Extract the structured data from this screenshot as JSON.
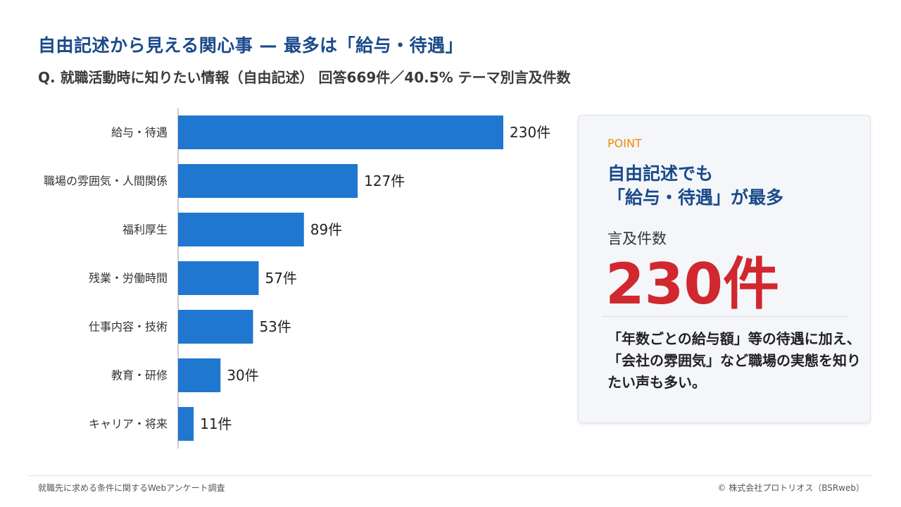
{
  "title": "自由記述から見える関心事 — 最多は「給与・待遇」",
  "subtitle": "Q. 就職活動時に知りたい情報（自由記述） 回答669件／40.5% テーマ別言及件数",
  "colors": {
    "bar": "#1f77d0",
    "accent_blue": "#1a4a8a",
    "accent_orange": "#f08a00",
    "accent_red": "#d0282e"
  },
  "chart_data": {
    "type": "bar",
    "orientation": "horizontal",
    "categories": [
      "給与・待遇",
      "職場の雰囲気・人間関係",
      "福利厚生",
      "残業・労働時間",
      "仕事内容・技術",
      "教育・研修",
      "キャリア・将来"
    ],
    "values": [
      230,
      127,
      89,
      57,
      53,
      30,
      11
    ],
    "value_labels": [
      "230件",
      "127件",
      "89件",
      "57件",
      "53件",
      "30件",
      "11件"
    ],
    "xlim": [
      0,
      230
    ],
    "grid": false,
    "legend": "none"
  },
  "panel": {
    "label": "POINT",
    "headline_line1": "自由記述でも",
    "headline_line2": "「給与・待遇」が最多",
    "metric_label": "言及件数",
    "metric_value": "230件",
    "note": "「年数ごとの給与額」等の待遇に加え、「会社の雰囲気」など職場の実態を知りたい声も多い。"
  },
  "footer": {
    "source": "就職先に求める条件に関するWebアンケート調査",
    "copyright": "© 株式会社プロトリオス（BSRweb）"
  }
}
